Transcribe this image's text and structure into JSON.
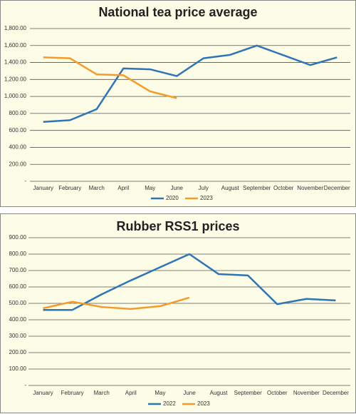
{
  "chart_data": [
    {
      "type": "line",
      "title": "National tea price average",
      "categories": [
        "January",
        "February",
        "March",
        "April",
        "May",
        "June",
        "July",
        "August",
        "September",
        "October",
        "November",
        "December"
      ],
      "series": [
        {
          "name": "2020",
          "color": "#2e75b6",
          "values": [
            700,
            720,
            850,
            1330,
            1320,
            1240,
            1450,
            1490,
            1600,
            1485,
            1370,
            1460
          ]
        },
        {
          "name": "2023",
          "color": "#f39c2b",
          "values": [
            1460,
            1450,
            1260,
            1250,
            1060,
            980,
            null,
            null,
            null,
            null,
            null,
            null
          ]
        }
      ],
      "ylim": [
        0,
        1800
      ],
      "yticks": [
        {
          "value": 0,
          "label": "-"
        },
        {
          "value": 200,
          "label": "200.00"
        },
        {
          "value": 400,
          "label": "400.00"
        },
        {
          "value": 600,
          "label": "600.00"
        },
        {
          "value": 800,
          "label": "800.00"
        },
        {
          "value": 1000,
          "label": "1,000.00"
        },
        {
          "value": 1200,
          "label": "1,200.00"
        },
        {
          "value": 1400,
          "label": "1,400.00"
        },
        {
          "value": 1600,
          "label": "1,600.00"
        },
        {
          "value": 1800,
          "label": "1,800.00"
        }
      ],
      "grid": true,
      "legend": "bottom"
    },
    {
      "type": "line",
      "title": "Rubber RSS1 prices",
      "categories": [
        "January",
        "February",
        "March",
        "April",
        "May",
        "June",
        "August",
        "September",
        "October",
        "November",
        "December"
      ],
      "series": [
        {
          "name": "2022",
          "color": "#2e75b6",
          "values": [
            460,
            460,
            555,
            640,
            720,
            800,
            678,
            670,
            495,
            527,
            518
          ]
        },
        {
          "name": "2023",
          "color": "#f39c2b",
          "values": [
            470,
            510,
            478,
            466,
            483,
            535,
            null,
            null,
            null,
            null,
            null
          ]
        }
      ],
      "ylim": [
        0,
        900
      ],
      "yticks": [
        {
          "value": 0,
          "label": "-"
        },
        {
          "value": 100,
          "label": "100.00"
        },
        {
          "value": 200,
          "label": "200.00"
        },
        {
          "value": 300,
          "label": "300.00"
        },
        {
          "value": 400,
          "label": "400.00"
        },
        {
          "value": 500,
          "label": "500.00"
        },
        {
          "value": 600,
          "label": "600.00"
        },
        {
          "value": 700,
          "label": "700.00"
        },
        {
          "value": 800,
          "label": "800.00"
        },
        {
          "value": 900,
          "label": "900.00"
        }
      ],
      "grid": true,
      "legend": "bottom"
    }
  ]
}
